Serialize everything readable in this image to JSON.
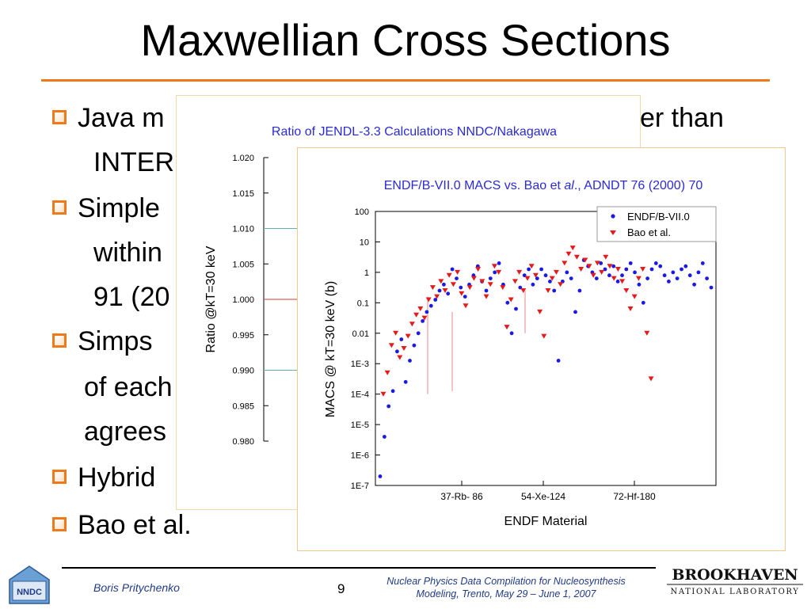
{
  "slide": {
    "title": "Maxwellian Cross Sections",
    "bullets": [
      {
        "text": "Java m",
        "tail": "er than"
      },
      {
        "text": "INTER"
      },
      {
        "text": "Simple"
      },
      {
        "text": "within"
      },
      {
        "text": "91 (20"
      },
      {
        "text": "Simps"
      },
      {
        "text": "of each"
      },
      {
        "text": "agrees"
      },
      {
        "text": "Hybrid"
      },
      {
        "text": "Bao et al."
      }
    ]
  },
  "footer": {
    "author": "Boris Pritychenko",
    "page": "9",
    "conference_line1": "Nuclear Physics Data Compilation for Nucleosynthesis",
    "conference_line2": "Modeling, Trento, May 29 – June 1,  2007",
    "left_logo": "NNDC",
    "right_logo_top": "BROOKHAVEN",
    "right_logo_bottom": "NATIONAL LABORATORY"
  },
  "colors": {
    "accent": "#f07a1a",
    "blue_series": "#1a1ae6",
    "red_series": "#e61a1a",
    "fig_title": "#2a2ad6"
  },
  "chart_data": [
    {
      "type": "line",
      "title": "Ratio of JENDL-3.3 Calculations NNDC/Nakagawa",
      "xlabel": "",
      "ylabel": "Ratio @kT=30 keV",
      "yticks": [
        "1.020",
        "1.015",
        "1.010",
        "1.005",
        "1.000",
        "0.995",
        "0.990",
        "0.985",
        "0.980"
      ],
      "ylim": [
        0.98,
        1.02
      ],
      "reference_lines": [
        {
          "y": 1.01,
          "color": "#5ab4b4"
        },
        {
          "y": 1.0,
          "color": "#d63a3a"
        },
        {
          "y": 0.99,
          "color": "#5ab4b4"
        }
      ]
    },
    {
      "type": "scatter",
      "title_parts": [
        "ENDF/B-VII.0 MACS vs. Bao et ",
        "al",
        "., ADNDT 76 (2000) 70"
      ],
      "xlabel": "ENDF Material",
      "ylabel": "MACS @ kT=30 keV (b)",
      "y_scale": "log",
      "yticks": [
        "100",
        "10",
        "1",
        "0.1",
        "0.01",
        "1E-3",
        "1E-4",
        "1E-5",
        "1E-6",
        "1E-7"
      ],
      "ylim": [
        1e-07,
        100
      ],
      "xticks": [
        "37-Rb- 86",
        "54-Xe-124",
        "72-Hf-180"
      ],
      "legend": {
        "placement": "top-right",
        "entries": [
          "ENDF/B-VII.0",
          "Bao et al."
        ]
      },
      "series": [
        {
          "name": "ENDF/B-VII.0",
          "marker": "circle",
          "color": "#1a1ae6",
          "log10_values": [
            -6.7,
            -5.4,
            -4.4,
            -3.9,
            -2.6,
            -2.2,
            -3.6,
            -2.9,
            -2.4,
            -2.0,
            -1.6,
            -1.3,
            -1.1,
            -0.9,
            -0.6,
            -0.4,
            -0.7,
            0.1,
            -0.2,
            -0.5,
            -0.8,
            -0.4,
            -0.1,
            0.2,
            -0.3,
            -0.6,
            -0.2,
            0.0,
            0.3,
            -0.4,
            -1.0,
            -2.0,
            -1.2,
            -0.5,
            -0.1,
            0.1,
            -0.4,
            -0.2,
            0.1,
            -0.1,
            -0.3,
            -0.6,
            -2.9,
            -0.3,
            0.0,
            -0.2,
            -1.3,
            -0.6,
            0.4,
            0.2,
            0.0,
            -0.2,
            0.3,
            0.1,
            -0.1,
            0.2,
            -0.3,
            -0.1,
            0.1,
            0.3,
            0.0,
            -0.4,
            -1.0,
            -0.2,
            0.1,
            0.3,
            0.2,
            -0.1,
            -0.3,
            0.0,
            -0.2,
            0.1,
            0.2,
            -0.1,
            -0.4,
            0.0,
            0.3,
            -0.2,
            -0.5
          ]
        },
        {
          "name": "Bao et al.",
          "marker": "triangle-down",
          "color": "#e61a1a",
          "log10_values": [
            -4.0,
            -3.3,
            -2.4,
            -2.0,
            -2.8,
            -2.5,
            -2.1,
            -1.7,
            -1.4,
            -1.2,
            -1.5,
            -0.9,
            -0.5,
            -0.8,
            -0.3,
            -0.6,
            -0.1,
            -0.4,
            0.0,
            -0.7,
            -1.1,
            -0.5,
            -0.2,
            0.1,
            -0.3,
            -0.8,
            -0.4,
            0.2,
            0.0,
            -0.5,
            -1.8,
            -0.9,
            -0.3,
            0.0,
            -0.6,
            -0.2,
            0.2,
            -0.1,
            -1.3,
            -2.1,
            -0.6,
            -0.2,
            0.0,
            -0.4,
            0.3,
            0.6,
            0.8,
            0.5,
            0.1,
            0.4,
            0.2,
            -0.1,
            0.3,
            0.0,
            0.5,
            0.2,
            -0.2,
            0.1,
            -0.3,
            -0.6,
            -1.2,
            -0.8,
            -0.2,
            0.1,
            -2.0,
            -3.5
          ]
        }
      ]
    }
  ]
}
